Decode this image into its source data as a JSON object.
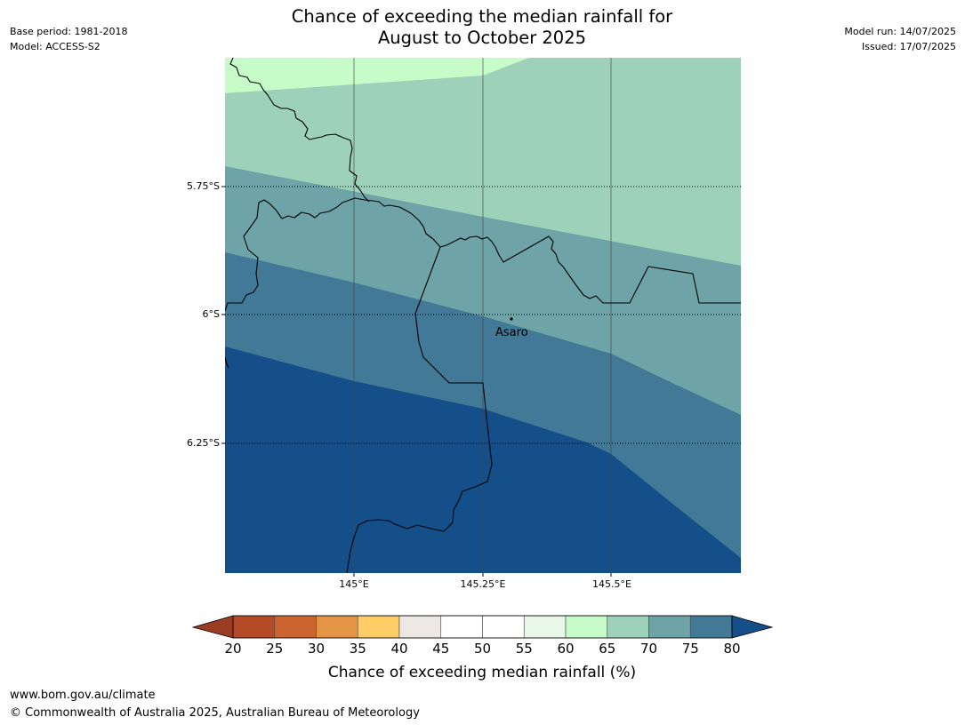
{
  "header": {
    "title_line1": "Chance of exceeding the median rainfall for",
    "title_line2": "August to October 2025",
    "base_period": "Base period: 1981-2018",
    "model": "Model: ACCESS-S2",
    "model_run": "Model run: 14/07/2025",
    "issued": "Issued: 17/07/2025"
  },
  "map": {
    "latitude_labels": [
      "5.75°S",
      "6°S",
      "6.25°S"
    ],
    "longitude_labels": [
      "145°E",
      "145.25°E",
      "145.5°E"
    ],
    "place": {
      "name": "Asaro"
    },
    "colors": {
      "band_60_65": "#c7fcc9",
      "band_65_70": "#9dd1b9",
      "band_70_75": "#6ea3a7",
      "band_75_80": "#417996",
      "band_80_plus": "#144f8a",
      "outline": "#000000"
    }
  },
  "legend": {
    "title": "Chance of exceeding median rainfall (%)",
    "tick_labels": [
      "20",
      "25",
      "30",
      "35",
      "40",
      "45",
      "50",
      "55",
      "60",
      "65",
      "70",
      "75",
      "80"
    ],
    "below_min_color": "#9b3c25",
    "above_max_color": "#144f8a",
    "segment_colors": [
      "#b44a26",
      "#cc6431",
      "#e39545",
      "#ffcc66",
      "#ede8e4",
      "#ffffff",
      "#ffffff",
      "#e8f7e8",
      "#c7fcc9",
      "#9dd1b9",
      "#6ea3a7",
      "#417996"
    ]
  },
  "footer": {
    "url": "www.bom.gov.au/climate",
    "copyright": "© Commonwealth of Australia 2025, Australian Bureau of Meteorology"
  }
}
